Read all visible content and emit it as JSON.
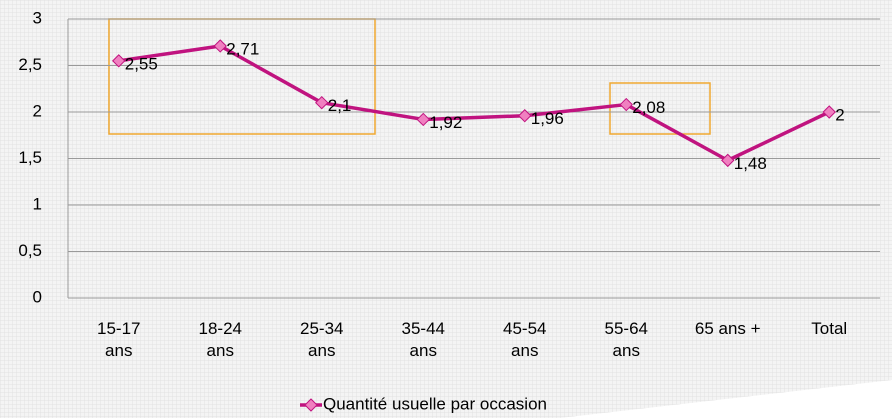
{
  "chart_data": {
    "type": "line",
    "categories": [
      "15-17 ans",
      "18-24 ans",
      "25-34 ans",
      "35-44 ans",
      "45-54 ans",
      "55-64 ans",
      "65 ans +",
      "Total"
    ],
    "series": [
      {
        "name": "Quantité usuelle par occasion",
        "color": "#c0137f",
        "values": [
          2.55,
          2.71,
          2.1,
          1.92,
          1.96,
          2.08,
          1.48,
          2
        ],
        "value_labels": [
          "2,55",
          "2,71",
          "2,1",
          "1,92",
          "1,96",
          "2,08",
          "1,48",
          "2"
        ]
      }
    ],
    "ylim": [
      0,
      3
    ],
    "yticks": [
      0,
      {
        "value": 0.5,
        "label": "0,5"
      },
      1,
      {
        "value": 1.5,
        "label": "1,5"
      },
      2,
      {
        "value": 2.5,
        "label": "2,5"
      },
      3
    ],
    "grid": true,
    "legend": "bottom"
  }
}
